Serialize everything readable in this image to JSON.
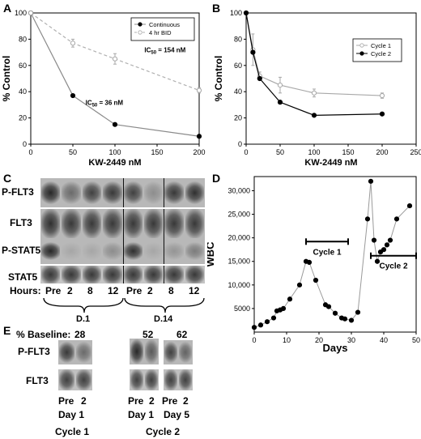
{
  "panel_letters": {
    "a": "A",
    "b": "B",
    "c": "C",
    "d": "D",
    "e": "E"
  },
  "chart_data": [
    {
      "id": "A",
      "type": "line",
      "xlabel": "KW-2449 nM",
      "ylabel": "% Control",
      "xlim": [
        0,
        200
      ],
      "ylim": [
        0,
        100
      ],
      "xticks": [
        0,
        50,
        100,
        150,
        200
      ],
      "yticks": [
        0,
        20,
        40,
        60,
        80,
        100
      ],
      "grid": false,
      "legend_position": "top-right",
      "series": [
        {
          "name": "Continuous",
          "style": "solid",
          "marker": "filled",
          "color": "#8a8a8a",
          "marker_color": "#000000",
          "x": [
            0,
            50,
            100,
            200
          ],
          "y": [
            100,
            37,
            15,
            6
          ],
          "err": [
            0,
            0,
            0,
            0
          ]
        },
        {
          "name": "4 hr BID",
          "style": "dashed",
          "marker": "open",
          "color": "#b0b0b0",
          "marker_color": "#a8a8a8",
          "x": [
            0,
            50,
            100,
            200
          ],
          "y": [
            100,
            77,
            65,
            41
          ],
          "err": [
            0,
            3,
            4,
            2
          ]
        }
      ],
      "annotations": {
        "ic50_bid": {
          "prefix": "IC",
          "sub": "50",
          "suffix": " = 154 nM",
          "x": 135,
          "y": 70
        },
        "ic50_cont": {
          "prefix": "IC",
          "sub": "50",
          "suffix": " = 36 nM",
          "x": 65,
          "y": 30
        }
      }
    },
    {
      "id": "B",
      "type": "line",
      "xlabel": "KW-2449 nM",
      "ylabel": "% Control",
      "xlim": [
        0,
        250
      ],
      "ylim": [
        0,
        100
      ],
      "xticks": [
        0,
        50,
        100,
        150,
        200,
        250
      ],
      "yticks": [
        0,
        20,
        40,
        60,
        80,
        100
      ],
      "grid": false,
      "legend_position": "top-right",
      "series": [
        {
          "name": "Cycle 1",
          "style": "solid",
          "marker": "open",
          "color": "#a8a8a8",
          "marker_color": "#a8a8a8",
          "x": [
            0,
            10,
            20,
            50,
            100,
            200
          ],
          "y": [
            100,
            72,
            52,
            45,
            39,
            37
          ],
          "err": [
            0,
            12,
            3,
            6,
            3,
            2
          ]
        },
        {
          "name": "Cycle 2",
          "style": "solid",
          "marker": "filled",
          "color": "#000000",
          "marker_color": "#000000",
          "x": [
            0,
            10,
            20,
            50,
            100,
            200
          ],
          "y": [
            100,
            70,
            50,
            32,
            22,
            23
          ],
          "err": [
            0,
            0,
            0,
            0,
            0,
            0
          ]
        }
      ]
    },
    {
      "id": "D",
      "type": "scatter",
      "xlabel": "Days",
      "ylabel": "WBC",
      "xlim": [
        0,
        50
      ],
      "ylim": [
        0,
        33000
      ],
      "xticks": [
        0,
        10,
        20,
        30,
        40,
        50
      ],
      "yticks": [
        5000,
        10000,
        15000,
        20000,
        25000,
        30000
      ],
      "ytick_labels": [
        "5000",
        "10,000",
        "15,000",
        "20,000",
        "25,000",
        "30,000"
      ],
      "grid": false,
      "series": [
        {
          "name": "",
          "x": [
            0,
            2,
            4,
            6,
            7,
            8,
            9,
            11,
            14,
            16,
            17,
            19,
            22,
            23,
            25,
            27,
            28,
            30,
            32,
            35,
            36,
            37,
            38,
            39,
            40,
            41,
            42,
            44,
            48
          ],
          "y": [
            1000,
            1500,
            2200,
            3000,
            4500,
            4700,
            5000,
            7000,
            10000,
            15000,
            14800,
            11000,
            5800,
            5400,
            4000,
            3000,
            2800,
            2500,
            4200,
            24000,
            32000,
            19500,
            15000,
            17000,
            17500,
            18500,
            19500,
            24000,
            26800
          ]
        }
      ],
      "annotations": {
        "cycle1": {
          "label": "Cycle 1",
          "x_start": 16,
          "x_end": 29,
          "y": 19200
        },
        "cycle2": {
          "label": "Cycle 2",
          "x_start": 36,
          "x_end": 50,
          "y": 16200
        }
      }
    }
  ],
  "blot_c": {
    "rows": [
      "P-FLT3",
      "FLT3",
      "P-STAT5",
      "STAT5"
    ],
    "hours_label": "Hours:",
    "hours": [
      "Pre",
      "2",
      "8",
      "12",
      "Pre",
      "2",
      "8",
      "12"
    ],
    "groups": [
      "D.1",
      "D.14"
    ],
    "intensity": [
      [
        0.95,
        0.55,
        0.8,
        0.85,
        0.8,
        0.35,
        0.85,
        0.9
      ],
      [
        0.9,
        0.85,
        0.85,
        0.85,
        0.85,
        0.85,
        0.85,
        0.85
      ],
      [
        0.95,
        0.2,
        0.2,
        0.35,
        0.9,
        0.2,
        0.3,
        0.45
      ],
      [
        0.85,
        0.85,
        0.85,
        0.85,
        0.85,
        0.85,
        0.85,
        0.85
      ]
    ]
  },
  "blot_e": {
    "baseline_label": "% Baseline:",
    "baselines": [
      "28",
      "52",
      "62"
    ],
    "rows": [
      "P-FLT3",
      "FLT3"
    ],
    "lanes": [
      "Pre",
      "2",
      "Pre",
      "2",
      "Pre",
      "2"
    ],
    "days": [
      "Day 1",
      "Day 1",
      "Day 5"
    ],
    "cycles": [
      "Cycle 1",
      "Cycle 2"
    ],
    "intensity": [
      [
        0.85,
        0.55,
        0.95,
        0.65,
        0.8,
        0.6
      ],
      [
        0.8,
        0.8,
        0.8,
        0.8,
        0.8,
        0.8
      ]
    ]
  }
}
